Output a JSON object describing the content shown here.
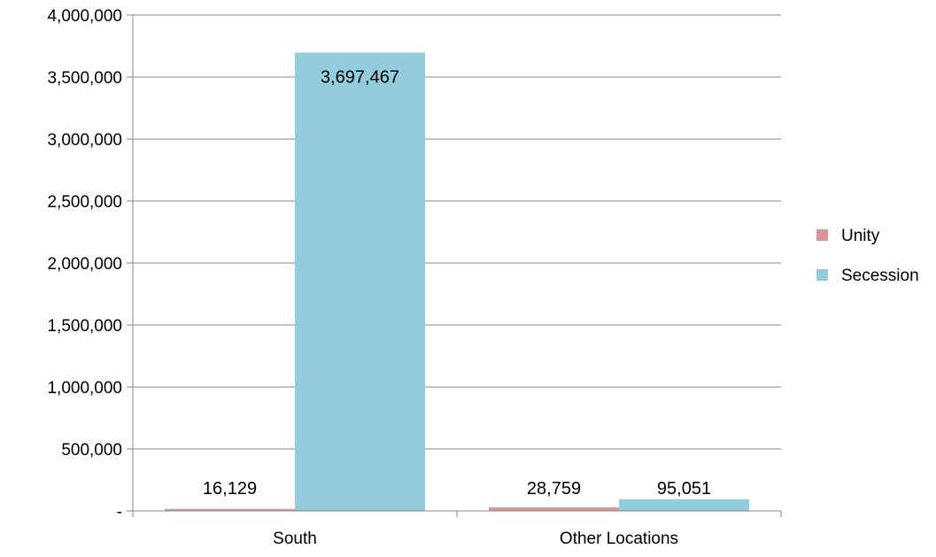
{
  "chart_data": {
    "type": "bar",
    "categories": [
      "South",
      "Other Locations"
    ],
    "series": [
      {
        "name": "Unity",
        "values": [
          16129,
          28759
        ],
        "labels": [
          "16,129",
          "28,759"
        ],
        "color": "#d99694"
      },
      {
        "name": "Secession",
        "values": [
          3697467,
          95051
        ],
        "labels": [
          "3,697,467",
          "95,051"
        ],
        "color": "#93cddd"
      }
    ],
    "y_ticks": [
      {
        "value": 0,
        "label": "-"
      },
      {
        "value": 500000,
        "label": "500,000"
      },
      {
        "value": 1000000,
        "label": "1,000,000"
      },
      {
        "value": 1500000,
        "label": "1,500,000"
      },
      {
        "value": 2000000,
        "label": "2,000,000"
      },
      {
        "value": 2500000,
        "label": "2,500,000"
      },
      {
        "value": 3000000,
        "label": "3,000,000"
      },
      {
        "value": 3500000,
        "label": "3,500,000"
      },
      {
        "value": 4000000,
        "label": "4,000,000"
      }
    ],
    "ylim": [
      0,
      4000000
    ],
    "title": "",
    "xlabel": "",
    "ylabel": "",
    "grid": true,
    "legend_position": "right",
    "gridline_color": "#868686"
  }
}
